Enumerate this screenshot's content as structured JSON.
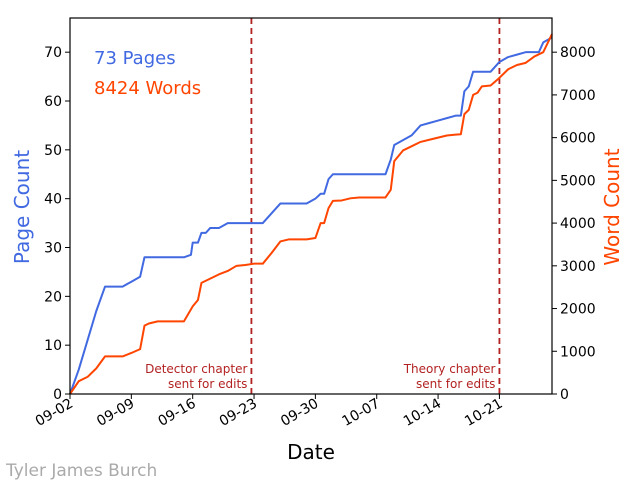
{
  "chart_data": {
    "type": "line",
    "xlabel": "Date",
    "ylabel_left": "Page Count",
    "ylabel_right": "Word Count",
    "x_range": [
      "2018-09-02",
      "2018-10-27"
    ],
    "ylim_left": [
      0,
      77
    ],
    "ylim_right": [
      0,
      8800
    ],
    "x_tick_labels": [
      "09-02",
      "09-09",
      "09-16",
      "09-23",
      "09-30",
      "10-07",
      "10-14",
      "10-21"
    ],
    "y_ticks_left": [
      0,
      10,
      20,
      30,
      40,
      50,
      60,
      70
    ],
    "y_ticks_right": [
      0,
      1000,
      2000,
      3000,
      4000,
      5000,
      6000,
      7000,
      8000
    ],
    "colors": {
      "pages": "#4169e1",
      "words": "#ff4500",
      "vline": "#b22222",
      "axis": "#000000"
    },
    "legend": {
      "pages_text": "73 Pages",
      "words_text": "8424 Words",
      "placement": "top-left"
    },
    "series": [
      {
        "name": "Page Count",
        "axis": "left",
        "points": [
          [
            "2018-09-02",
            0
          ],
          [
            "2018-09-03",
            5
          ],
          [
            "2018-09-04",
            11
          ],
          [
            "2018-09-05",
            17
          ],
          [
            "2018-09-06",
            22
          ],
          [
            "2018-09-07",
            22
          ],
          [
            "2018-09-08",
            22
          ],
          [
            "2018-09-09",
            23
          ],
          [
            "2018-09-10",
            24
          ],
          [
            "2018-09-10.5",
            28
          ],
          [
            "2018-09-11",
            28
          ],
          [
            "2018-09-12",
            28
          ],
          [
            "2018-09-13",
            28
          ],
          [
            "2018-09-14",
            28
          ],
          [
            "2018-09-15",
            28
          ],
          [
            "2018-09-15.8",
            28.5
          ],
          [
            "2018-09-16",
            31
          ],
          [
            "2018-09-16.6",
            31
          ],
          [
            "2018-09-17",
            33
          ],
          [
            "2018-09-17.5",
            33
          ],
          [
            "2018-09-18",
            34
          ],
          [
            "2018-09-19",
            34
          ],
          [
            "2018-09-20",
            35
          ],
          [
            "2018-09-21",
            35
          ],
          [
            "2018-09-22",
            35
          ],
          [
            "2018-09-23",
            35
          ],
          [
            "2018-09-24",
            35
          ],
          [
            "2018-09-25",
            37
          ],
          [
            "2018-09-26",
            39
          ],
          [
            "2018-09-27",
            39
          ],
          [
            "2018-09-28",
            39
          ],
          [
            "2018-09-29",
            39
          ],
          [
            "2018-09-30",
            40
          ],
          [
            "2018-09-30.6",
            41
          ],
          [
            "2018-10-01",
            41
          ],
          [
            "2018-10-01.5",
            44
          ],
          [
            "2018-10-02",
            45
          ],
          [
            "2018-10-03",
            45
          ],
          [
            "2018-10-04",
            45
          ],
          [
            "2018-10-05",
            45
          ],
          [
            "2018-10-06",
            45
          ],
          [
            "2018-10-07",
            45
          ],
          [
            "2018-10-08",
            45
          ],
          [
            "2018-10-08.6",
            48
          ],
          [
            "2018-10-09",
            51
          ],
          [
            "2018-10-10",
            52
          ],
          [
            "2018-10-11",
            53
          ],
          [
            "2018-10-12",
            55
          ],
          [
            "2018-10-13",
            55.5
          ],
          [
            "2018-10-14",
            56
          ],
          [
            "2018-10-15",
            56.5
          ],
          [
            "2018-10-16",
            57
          ],
          [
            "2018-10-16.6",
            57
          ],
          [
            "2018-10-17",
            62
          ],
          [
            "2018-10-17.5",
            63
          ],
          [
            "2018-10-18",
            66
          ],
          [
            "2018-10-19",
            66
          ],
          [
            "2018-10-20",
            66
          ],
          [
            "2018-10-21",
            68
          ],
          [
            "2018-10-22",
            69
          ],
          [
            "2018-10-23",
            69.5
          ],
          [
            "2018-10-24",
            70
          ],
          [
            "2018-10-25",
            70
          ],
          [
            "2018-10-25.5",
            70
          ],
          [
            "2018-10-26",
            72
          ],
          [
            "2018-10-27",
            73
          ]
        ]
      },
      {
        "name": "Word Count",
        "axis": "right",
        "points": [
          [
            "2018-09-02",
            0
          ],
          [
            "2018-09-03",
            300
          ],
          [
            "2018-09-04",
            400
          ],
          [
            "2018-09-05",
            600
          ],
          [
            "2018-09-06",
            880
          ],
          [
            "2018-09-07",
            880
          ],
          [
            "2018-09-08",
            880
          ],
          [
            "2018-09-09",
            960
          ],
          [
            "2018-09-10",
            1050
          ],
          [
            "2018-09-10.5",
            1600
          ],
          [
            "2018-09-11",
            1650
          ],
          [
            "2018-09-12",
            1700
          ],
          [
            "2018-09-13",
            1700
          ],
          [
            "2018-09-14",
            1700
          ],
          [
            "2018-09-15",
            1700
          ],
          [
            "2018-09-16",
            2050
          ],
          [
            "2018-09-16.6",
            2200
          ],
          [
            "2018-09-17",
            2600
          ],
          [
            "2018-09-17.5",
            2650
          ],
          [
            "2018-09-18",
            2700
          ],
          [
            "2018-09-19",
            2800
          ],
          [
            "2018-09-20",
            2880
          ],
          [
            "2018-09-21",
            3000
          ],
          [
            "2018-09-22",
            3020
          ],
          [
            "2018-09-23",
            3050
          ],
          [
            "2018-09-24",
            3050
          ],
          [
            "2018-09-25",
            3300
          ],
          [
            "2018-09-26",
            3570
          ],
          [
            "2018-09-27",
            3620
          ],
          [
            "2018-09-28",
            3620
          ],
          [
            "2018-09-29",
            3620
          ],
          [
            "2018-09-30",
            3650
          ],
          [
            "2018-09-30.6",
            4000
          ],
          [
            "2018-10-01",
            4000
          ],
          [
            "2018-10-01.5",
            4350
          ],
          [
            "2018-10-02",
            4520
          ],
          [
            "2018-10-03",
            4530
          ],
          [
            "2018-10-04",
            4580
          ],
          [
            "2018-10-05",
            4600
          ],
          [
            "2018-10-06",
            4600
          ],
          [
            "2018-10-07",
            4600
          ],
          [
            "2018-10-08",
            4600
          ],
          [
            "2018-10-08.6",
            4780
          ],
          [
            "2018-10-09",
            5450
          ],
          [
            "2018-10-10",
            5700
          ],
          [
            "2018-10-11",
            5800
          ],
          [
            "2018-10-12",
            5900
          ],
          [
            "2018-10-13",
            5950
          ],
          [
            "2018-10-14",
            6000
          ],
          [
            "2018-10-15",
            6050
          ],
          [
            "2018-10-16",
            6070
          ],
          [
            "2018-10-16.6",
            6080
          ],
          [
            "2018-10-17",
            6550
          ],
          [
            "2018-10-17.5",
            6650
          ],
          [
            "2018-10-18",
            7000
          ],
          [
            "2018-10-18.5",
            7050
          ],
          [
            "2018-10-19",
            7200
          ],
          [
            "2018-10-20",
            7220
          ],
          [
            "2018-10-21",
            7400
          ],
          [
            "2018-10-22",
            7600
          ],
          [
            "2018-10-23",
            7700
          ],
          [
            "2018-10-24",
            7750
          ],
          [
            "2018-10-25",
            7900
          ],
          [
            "2018-10-26",
            8000
          ],
          [
            "2018-10-27",
            8424
          ]
        ]
      }
    ],
    "vlines": [
      {
        "date": "2018-09-22.7",
        "label_line1": "Detector chapter",
        "label_line2": "sent for edits"
      },
      {
        "date": "2018-10-21",
        "label_line1": "Theory chapter",
        "label_line2": "sent for edits"
      }
    ]
  },
  "credit": "Tyler James Burch"
}
